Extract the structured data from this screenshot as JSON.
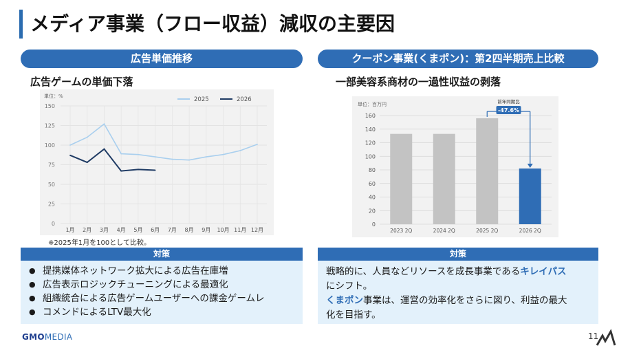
{
  "header": {
    "title": "メディア事業（フロー収益）減収の主要因"
  },
  "left": {
    "pill": "広告単価推移",
    "subheading": "広告ゲームの単価下落",
    "note": "※2025年1月を100として比較。",
    "measures_header": "対策",
    "measures": [
      "提携媒体ネットワーク拡大による広告在庫増",
      "広告表示ロジックチューニングによる最適化",
      "組織統合による広告ゲームユーザーへの課金ゲームレ",
      "コメンドによるLTV最大化"
    ]
  },
  "right": {
    "pill": "クーポン事業(くまポン)：第2四半期売上比較",
    "subheading": "一部美容系商材の一過性収益の剥落",
    "measures_header": "対策",
    "text": {
      "line1_a": "戦略的に、人員などリソースを成長事業である",
      "line1_hl": "キレイパス",
      "line2": "にシフト。",
      "line3_hl": "くまポン",
      "line3_b": "事業は、運営の効率化をさらに図り、利益の最大",
      "line4": "化を目指す。"
    }
  },
  "footer": {
    "logo_gmo": "GMO",
    "logo_media": "MEDIA",
    "page": "11"
  },
  "colors": {
    "accent": "#2f6db5",
    "bar_gray": "#c3c3c3",
    "line_2025": "#a9cfee",
    "line_2026": "#1f3b64",
    "measure_bg": "#e3f1fb"
  },
  "chart_data": [
    {
      "type": "line",
      "unit_label": "単位：%",
      "categories": [
        "1月",
        "2月",
        "3月",
        "4月",
        "5月",
        "6月",
        "7月",
        "8月",
        "9月",
        "10月",
        "11月",
        "12月"
      ],
      "ylim": [
        0,
        150
      ],
      "yticks": [
        0,
        25,
        50,
        75,
        100,
        125,
        150
      ],
      "legend_position": "top-right",
      "grid": true,
      "series": [
        {
          "name": "2025",
          "values": [
            100,
            110,
            127,
            89,
            88,
            85,
            82,
            81,
            85,
            88,
            93,
            101
          ]
        },
        {
          "name": "2026",
          "values": [
            87,
            78,
            95,
            67,
            69,
            68,
            null,
            null,
            null,
            null,
            null,
            null
          ]
        }
      ]
    },
    {
      "type": "bar",
      "unit_label": "単位：百万円",
      "categories": [
        "2023 2Q",
        "2024 2Q",
        "2025 2Q",
        "2026 2Q"
      ],
      "values": [
        133,
        133,
        156,
        82
      ],
      "ylim": [
        0,
        160
      ],
      "yticks": [
        0,
        20,
        40,
        60,
        80,
        100,
        120,
        140,
        160
      ],
      "grid": true,
      "annotation": {
        "label": "前年同期比",
        "value": "-47.6%"
      }
    }
  ]
}
